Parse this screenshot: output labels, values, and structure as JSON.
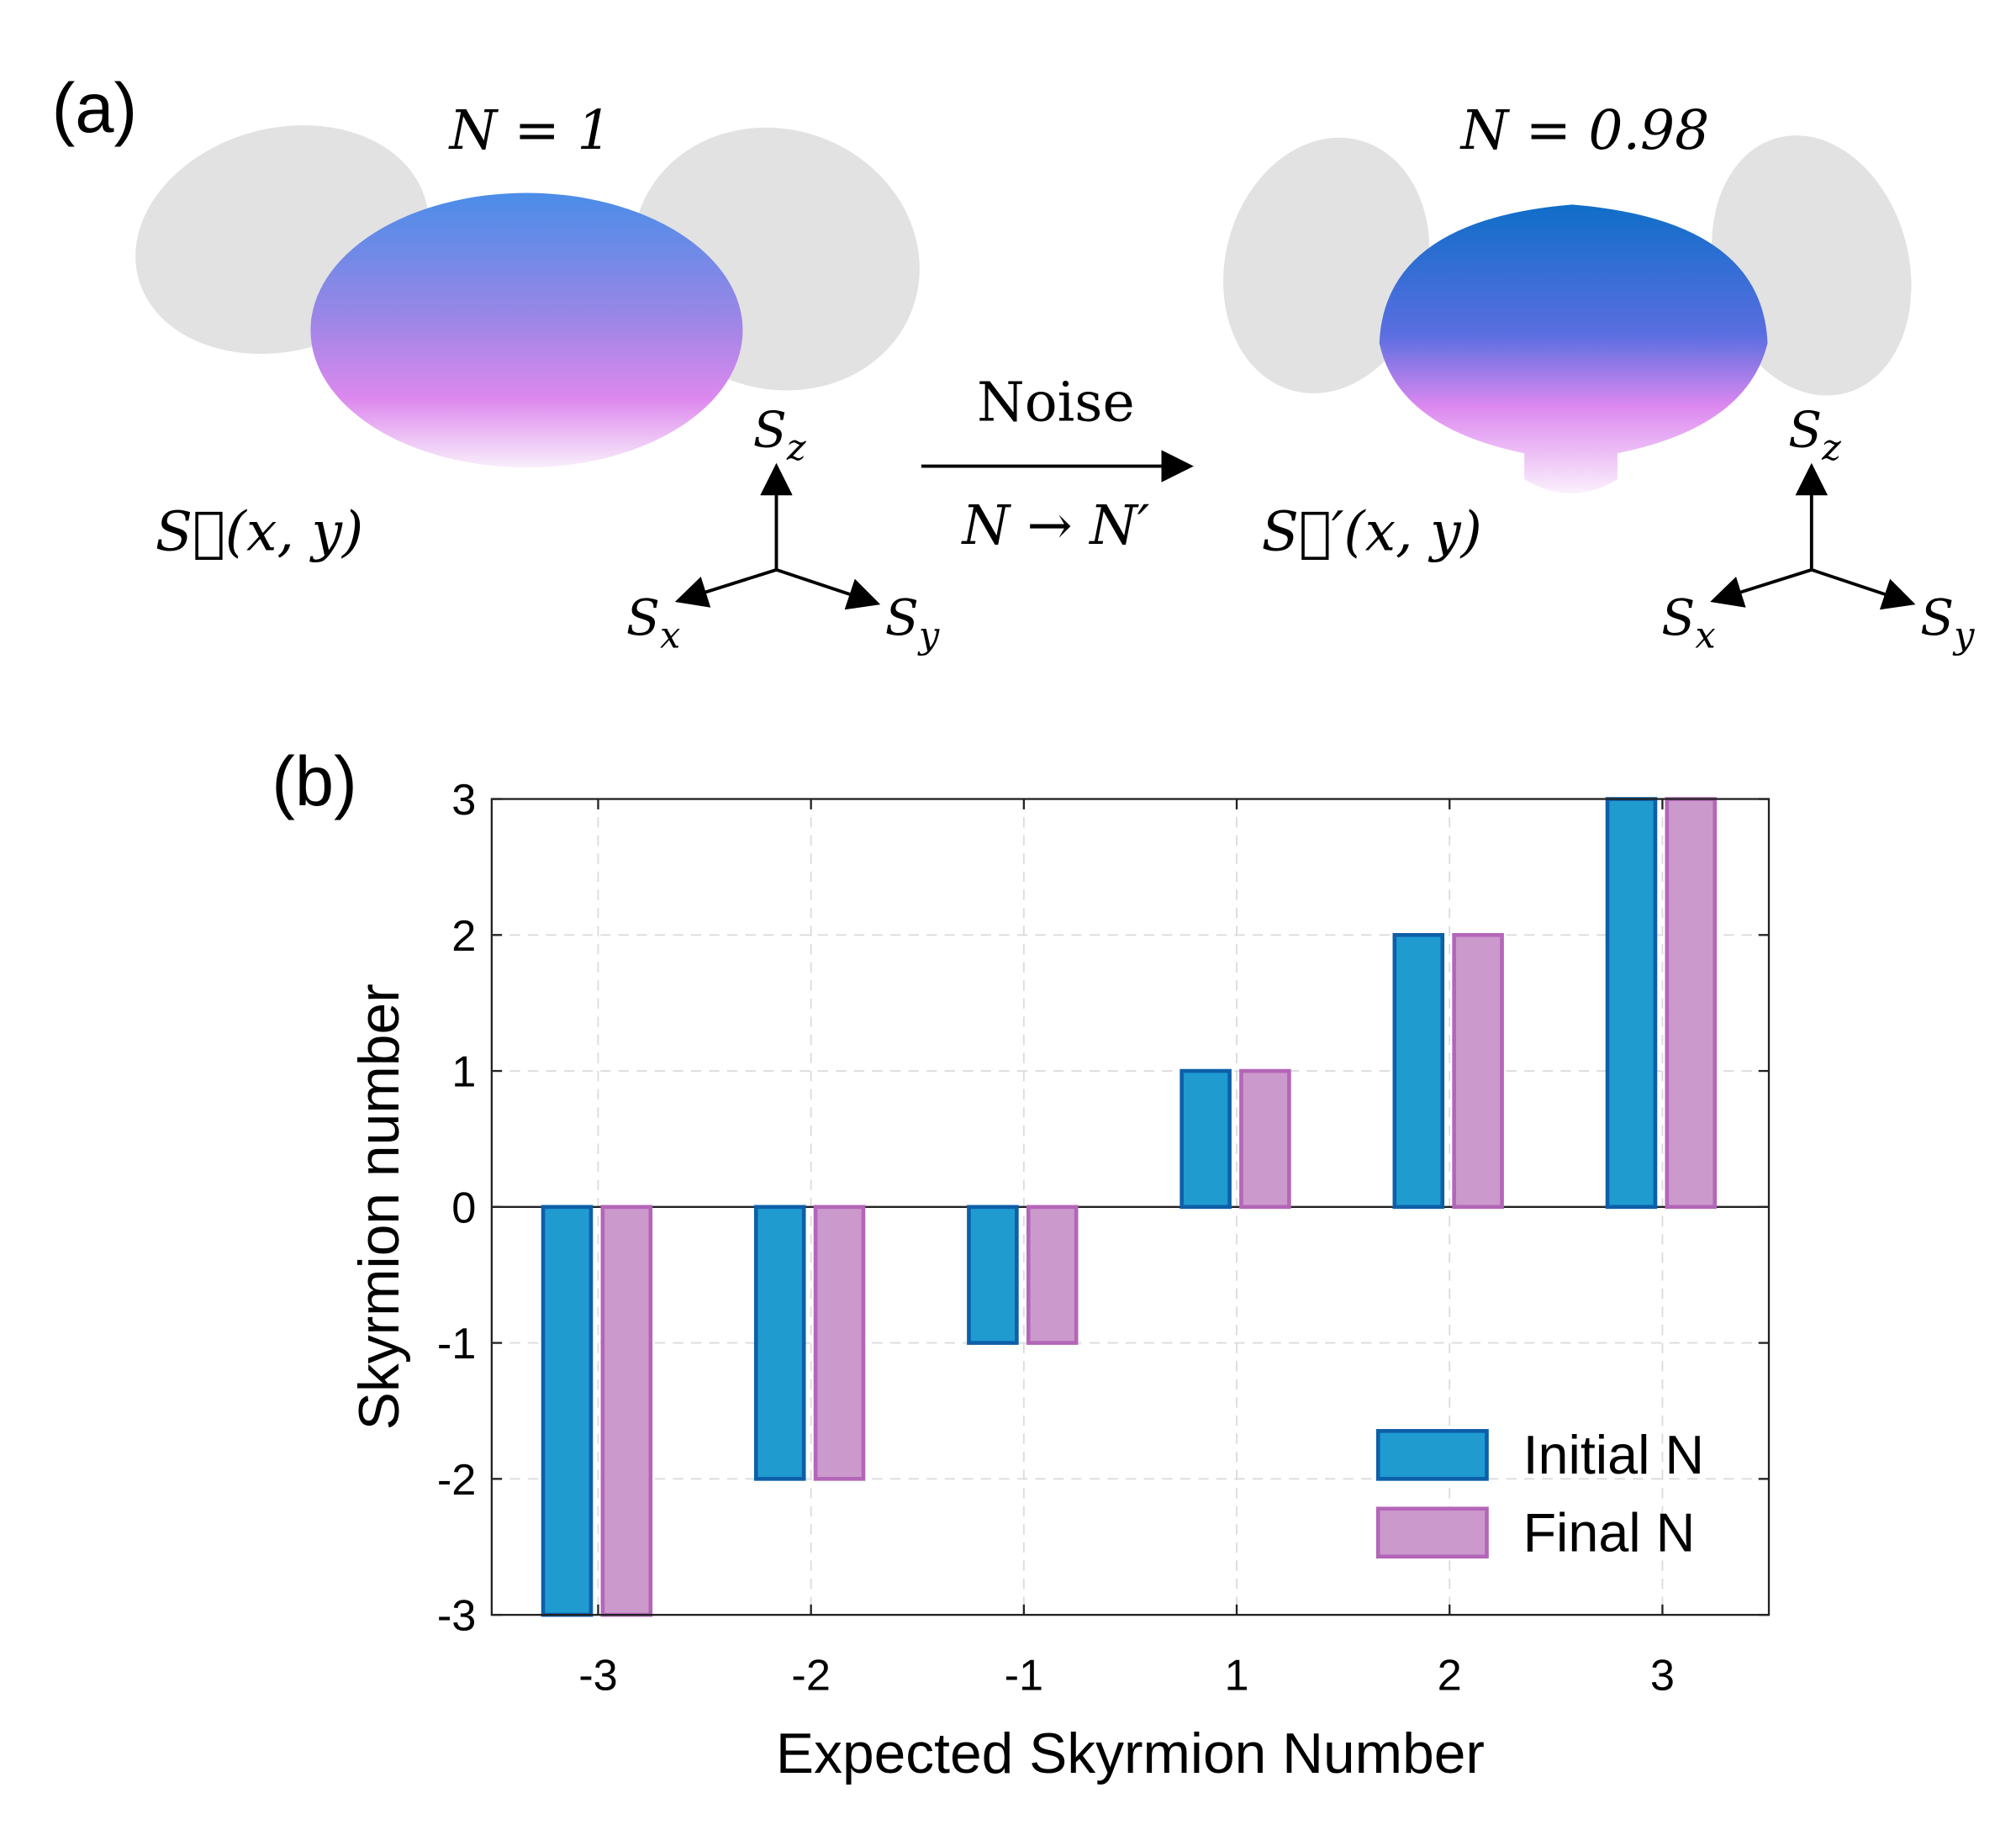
{
  "panel_a": {
    "panel_label": "(a)",
    "left_number": "N = 1",
    "right_number": "N = 0.98",
    "arrow_top": "Noise",
    "arrow_bottom": "N → N′",
    "left_field": "S⃗(x, y)",
    "right_field": "S⃗′(x, y)",
    "axes_left": {
      "z": {
        "base": "S",
        "sub": "z"
      },
      "x": {
        "base": "S",
        "sub": "x"
      },
      "y": {
        "base": "S",
        "sub": "y"
      }
    },
    "axes_right": {
      "z": {
        "base": "S",
        "sub": "z"
      },
      "x": {
        "base": "S",
        "sub": "x"
      },
      "y": {
        "base": "S",
        "sub": "y"
      }
    }
  },
  "chart_data": {
    "type": "bar",
    "panel_label": "(b)",
    "x_label": "Expected Skyrmion Number",
    "y_label": "Skyrmion number",
    "categories": [
      "-3",
      "-2",
      "-1",
      "1",
      "2",
      "3"
    ],
    "series": [
      {
        "name": "Initial N",
        "color": "#1f9bd0",
        "edge_color": "#0d5fa8",
        "values": [
          -3,
          -2,
          -1,
          1,
          2,
          3
        ]
      },
      {
        "name": "Final N",
        "color": "#cc99cc",
        "edge_color": "#b366b8",
        "values": [
          -3,
          -2,
          -1,
          1,
          2,
          3
        ]
      }
    ],
    "ylim": [
      -3,
      3
    ],
    "yticks": [
      -3,
      -2,
      -1,
      0,
      1,
      2,
      3
    ],
    "grid": true,
    "legend": "lower right"
  }
}
